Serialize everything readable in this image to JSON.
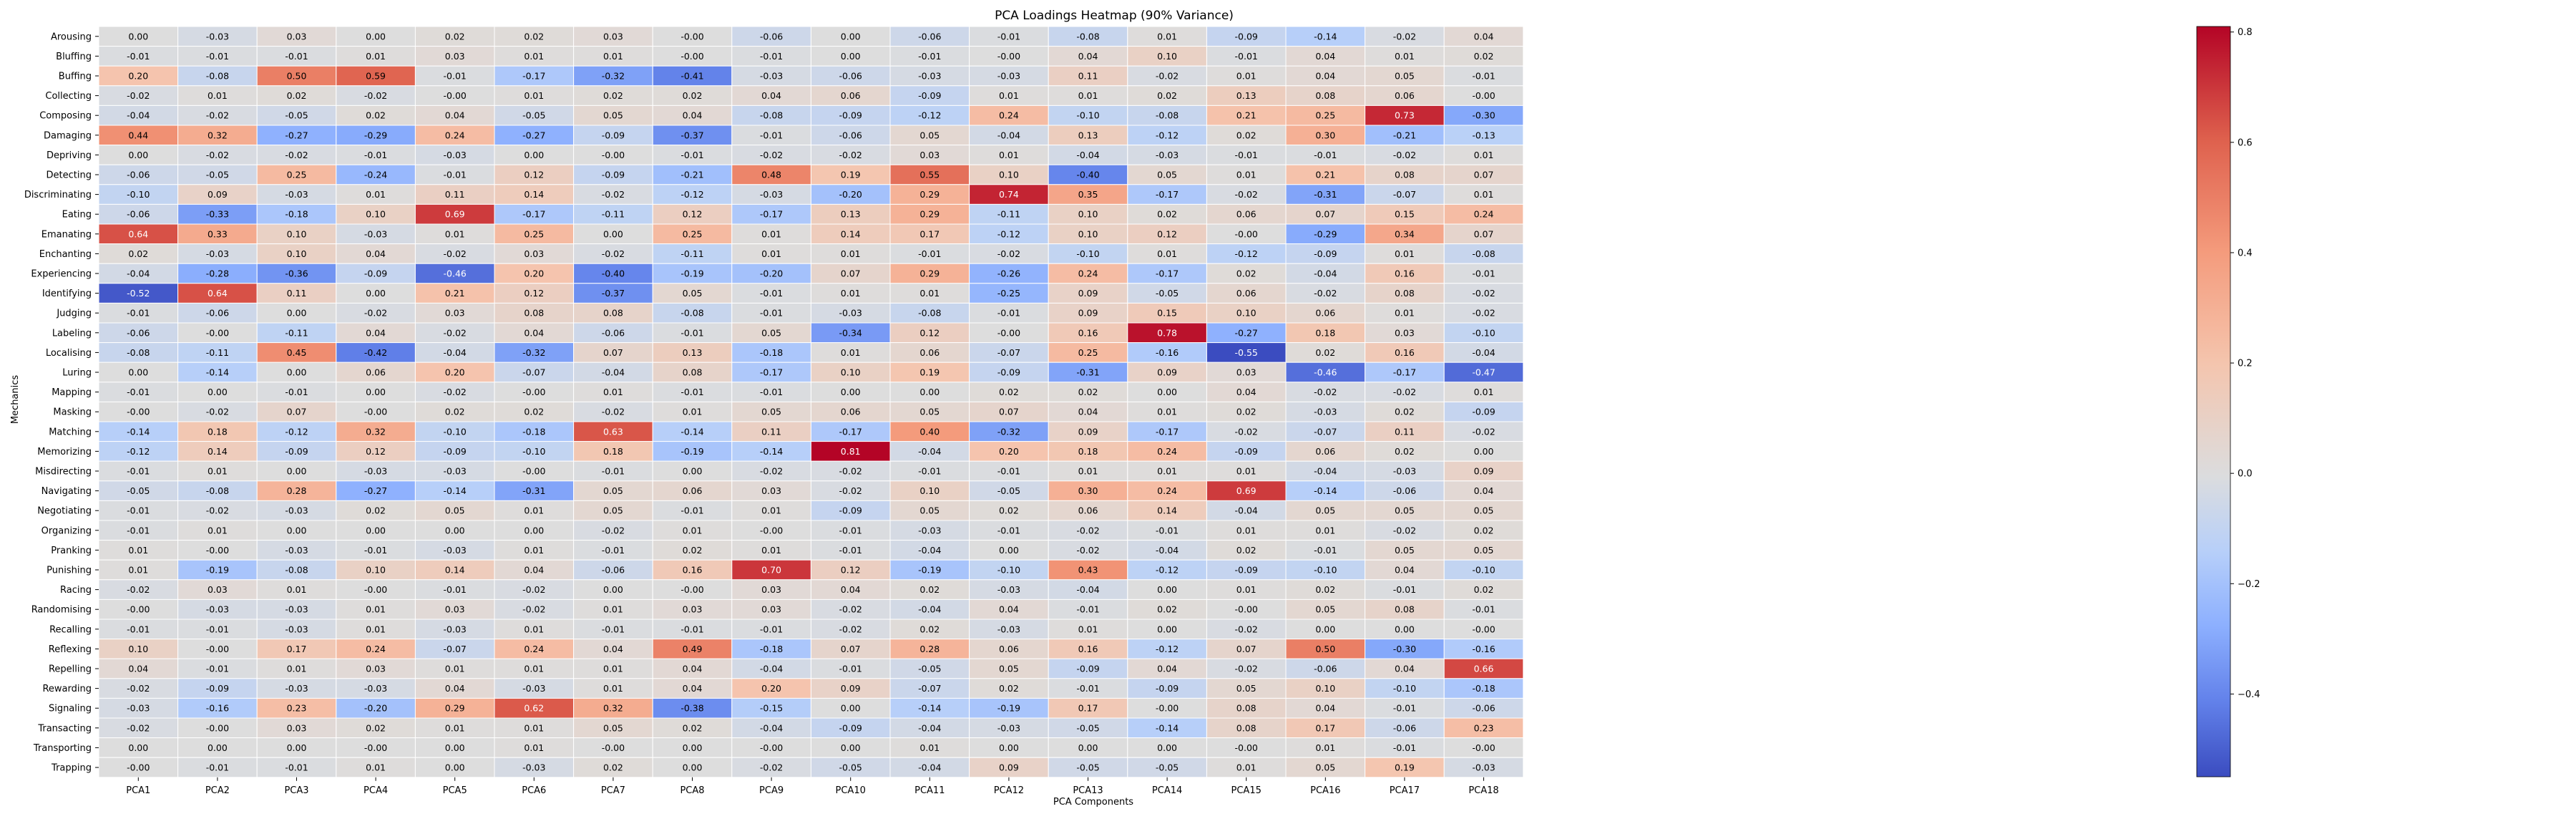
{
  "chart_data": {
    "type": "heatmap",
    "title": "PCA Loadings Heatmap (90% Variance)",
    "xlabel": "PCA Components",
    "ylabel": "Mechanics",
    "columns": [
      "PCA1",
      "PCA2",
      "PCA3",
      "PCA4",
      "PCA5",
      "PCA6",
      "PCA7",
      "PCA8",
      "PCA9",
      "PCA10",
      "PCA11",
      "PCA12",
      "PCA13",
      "PCA14",
      "PCA15",
      "PCA16",
      "PCA17",
      "PCA18"
    ],
    "rows": [
      "Arousing",
      "Bluffing",
      "Buffing",
      "Collecting",
      "Composing",
      "Damaging",
      "Depriving",
      "Detecting",
      "Discriminating",
      "Eating",
      "Emanating",
      "Enchanting",
      "Experiencing",
      "Identifying",
      "Judging",
      "Labeling",
      "Localising",
      "Luring",
      "Mapping",
      "Masking",
      "Matching",
      "Memorizing",
      "Misdirecting",
      "Navigating",
      "Negotiating",
      "Organizing",
      "Pranking",
      "Punishing",
      "Racing",
      "Randomising",
      "Recalling",
      "Reflexing",
      "Repelling",
      "Rewarding",
      "Signaling",
      "Transacting",
      "Transporting",
      "Trapping"
    ],
    "cell_labels": [
      [
        "0.00",
        "-0.03",
        "0.03",
        "0.00",
        "0.02",
        "0.02",
        "0.03",
        "-0.00",
        "-0.06",
        "0.00",
        "-0.06",
        "-0.01",
        "-0.08",
        "0.01",
        "-0.09",
        "-0.14",
        "-0.02",
        "0.04"
      ],
      [
        "-0.01",
        "-0.01",
        "-0.01",
        "0.01",
        "0.03",
        "0.01",
        "0.01",
        "-0.00",
        "-0.01",
        "0.00",
        "-0.01",
        "-0.00",
        "0.04",
        "0.10",
        "-0.01",
        "0.04",
        "0.01",
        "0.02"
      ],
      [
        "0.20",
        "-0.08",
        "0.50",
        "0.59",
        "-0.01",
        "-0.17",
        "-0.32",
        "-0.41",
        "-0.03",
        "-0.06",
        "-0.03",
        "-0.03",
        "0.11",
        "-0.02",
        "0.01",
        "0.04",
        "0.05",
        "-0.01"
      ],
      [
        "-0.02",
        "0.01",
        "0.02",
        "-0.02",
        "-0.00",
        "0.01",
        "0.02",
        "0.02",
        "0.04",
        "0.06",
        "-0.09",
        "0.01",
        "0.01",
        "0.02",
        "0.13",
        "0.08",
        "0.06",
        "-0.00"
      ],
      [
        "-0.04",
        "-0.02",
        "-0.05",
        "0.02",
        "0.04",
        "-0.05",
        "0.05",
        "0.04",
        "-0.08",
        "-0.09",
        "-0.12",
        "0.24",
        "-0.10",
        "-0.08",
        "0.21",
        "0.25",
        "0.73",
        "-0.30"
      ],
      [
        "0.44",
        "0.32",
        "-0.27",
        "-0.29",
        "0.24",
        "-0.27",
        "-0.09",
        "-0.37",
        "-0.01",
        "-0.06",
        "0.05",
        "-0.04",
        "0.13",
        "-0.12",
        "0.02",
        "0.30",
        "-0.21",
        "-0.13"
      ],
      [
        "0.00",
        "-0.02",
        "-0.02",
        "-0.01",
        "-0.03",
        "0.00",
        "-0.00",
        "-0.01",
        "-0.02",
        "-0.02",
        "0.03",
        "0.01",
        "-0.04",
        "-0.03",
        "-0.01",
        "-0.01",
        "-0.02",
        "0.01"
      ],
      [
        "-0.06",
        "-0.05",
        "0.25",
        "-0.24",
        "-0.01",
        "0.12",
        "-0.09",
        "-0.21",
        "0.48",
        "0.19",
        "0.55",
        "0.10",
        "-0.40",
        "0.05",
        "0.01",
        "0.21",
        "0.08",
        "0.07"
      ],
      [
        "-0.10",
        "0.09",
        "-0.03",
        "0.01",
        "0.11",
        "0.14",
        "-0.02",
        "-0.12",
        "-0.03",
        "-0.20",
        "0.29",
        "0.74",
        "0.35",
        "-0.17",
        "-0.02",
        "-0.31",
        "-0.07",
        "0.01"
      ],
      [
        "-0.06",
        "-0.33",
        "-0.18",
        "0.10",
        "0.69",
        "-0.17",
        "-0.11",
        "0.12",
        "-0.17",
        "0.13",
        "0.29",
        "-0.11",
        "0.10",
        "0.02",
        "0.06",
        "0.07",
        "0.15",
        "0.24"
      ],
      [
        "0.64",
        "0.33",
        "0.10",
        "-0.03",
        "0.01",
        "0.25",
        "0.00",
        "0.25",
        "0.01",
        "0.14",
        "0.17",
        "-0.12",
        "0.10",
        "0.12",
        "-0.00",
        "-0.29",
        "0.34",
        "0.07"
      ],
      [
        "0.02",
        "-0.03",
        "0.10",
        "0.04",
        "-0.02",
        "0.03",
        "-0.02",
        "-0.11",
        "0.01",
        "0.01",
        "-0.01",
        "-0.02",
        "-0.10",
        "0.01",
        "-0.12",
        "-0.09",
        "0.01",
        "-0.08"
      ],
      [
        "-0.04",
        "-0.28",
        "-0.36",
        "-0.09",
        "-0.46",
        "0.20",
        "-0.40",
        "-0.19",
        "-0.20",
        "0.07",
        "0.29",
        "-0.26",
        "0.24",
        "-0.17",
        "0.02",
        "-0.04",
        "0.16",
        "-0.01"
      ],
      [
        "-0.52",
        "0.64",
        "0.11",
        "0.00",
        "0.21",
        "0.12",
        "-0.37",
        "0.05",
        "-0.01",
        "0.01",
        "0.01",
        "-0.25",
        "0.09",
        "-0.05",
        "0.06",
        "-0.02",
        "0.08",
        "-0.02"
      ],
      [
        "-0.01",
        "-0.06",
        "0.00",
        "-0.02",
        "0.03",
        "0.08",
        "0.08",
        "-0.08",
        "-0.01",
        "-0.03",
        "-0.08",
        "-0.01",
        "0.09",
        "0.15",
        "0.10",
        "0.06",
        "0.01",
        "-0.02"
      ],
      [
        "-0.06",
        "-0.00",
        "-0.11",
        "0.04",
        "-0.02",
        "0.04",
        "-0.06",
        "-0.01",
        "0.05",
        "-0.34",
        "0.12",
        "-0.00",
        "0.16",
        "0.78",
        "-0.27",
        "0.18",
        "0.03",
        "-0.10"
      ],
      [
        "-0.08",
        "-0.11",
        "0.45",
        "-0.42",
        "-0.04",
        "-0.32",
        "0.07",
        "0.13",
        "-0.18",
        "0.01",
        "0.06",
        "-0.07",
        "0.25",
        "-0.16",
        "-0.55",
        "0.02",
        "0.16",
        "-0.04"
      ],
      [
        "0.00",
        "-0.14",
        "0.00",
        "0.06",
        "0.20",
        "-0.07",
        "-0.04",
        "0.08",
        "-0.17",
        "0.10",
        "0.19",
        "-0.09",
        "-0.31",
        "0.09",
        "0.03",
        "-0.46",
        "-0.17",
        "-0.47"
      ],
      [
        "-0.01",
        "0.00",
        "-0.01",
        "0.00",
        "-0.02",
        "-0.00",
        "0.01",
        "-0.01",
        "-0.01",
        "0.00",
        "0.00",
        "0.02",
        "0.02",
        "0.00",
        "0.04",
        "-0.02",
        "-0.02",
        "0.01"
      ],
      [
        "-0.00",
        "-0.02",
        "0.07",
        "-0.00",
        "0.02",
        "0.02",
        "-0.02",
        "0.01",
        "0.05",
        "0.06",
        "0.05",
        "0.07",
        "0.04",
        "0.01",
        "0.02",
        "-0.03",
        "0.02",
        "-0.09"
      ],
      [
        "-0.14",
        "0.18",
        "-0.12",
        "0.32",
        "-0.10",
        "-0.18",
        "0.63",
        "-0.14",
        "0.11",
        "-0.17",
        "0.40",
        "-0.32",
        "0.09",
        "-0.17",
        "-0.02",
        "-0.07",
        "0.11",
        "-0.02"
      ],
      [
        "-0.12",
        "0.14",
        "-0.09",
        "0.12",
        "-0.09",
        "-0.10",
        "0.18",
        "-0.19",
        "-0.14",
        "0.81",
        "-0.04",
        "0.20",
        "0.18",
        "0.24",
        "-0.09",
        "0.06",
        "0.02",
        "0.00"
      ],
      [
        "-0.01",
        "0.01",
        "0.00",
        "-0.03",
        "-0.03",
        "-0.00",
        "-0.01",
        "0.00",
        "-0.02",
        "-0.02",
        "-0.01",
        "-0.01",
        "0.01",
        "0.01",
        "0.01",
        "-0.04",
        "-0.03",
        "0.09"
      ],
      [
        "-0.05",
        "-0.08",
        "0.28",
        "-0.27",
        "-0.14",
        "-0.31",
        "0.05",
        "0.06",
        "0.03",
        "-0.02",
        "0.10",
        "-0.05",
        "0.30",
        "0.24",
        "0.69",
        "-0.14",
        "-0.06",
        "0.04"
      ],
      [
        "-0.01",
        "-0.02",
        "-0.03",
        "0.02",
        "0.05",
        "0.01",
        "0.05",
        "-0.01",
        "0.01",
        "-0.09",
        "0.05",
        "0.02",
        "0.06",
        "0.14",
        "-0.04",
        "0.05",
        "0.05",
        "0.05"
      ],
      [
        "-0.01",
        "0.01",
        "0.00",
        "0.00",
        "0.00",
        "0.00",
        "-0.02",
        "0.01",
        "-0.00",
        "-0.01",
        "-0.03",
        "-0.01",
        "-0.02",
        "-0.01",
        "0.01",
        "0.01",
        "-0.02",
        "0.02"
      ],
      [
        "0.01",
        "-0.00",
        "-0.03",
        "-0.01",
        "-0.03",
        "0.01",
        "-0.01",
        "0.02",
        "0.01",
        "-0.01",
        "-0.04",
        "0.00",
        "-0.02",
        "-0.04",
        "0.02",
        "-0.01",
        "0.05",
        "0.05"
      ],
      [
        "0.01",
        "-0.19",
        "-0.08",
        "0.10",
        "0.14",
        "0.04",
        "-0.06",
        "0.16",
        "0.70",
        "0.12",
        "-0.19",
        "-0.10",
        "0.43",
        "-0.12",
        "-0.09",
        "-0.10",
        "0.04",
        "-0.10"
      ],
      [
        "-0.02",
        "0.03",
        "0.01",
        "-0.00",
        "-0.01",
        "-0.02",
        "0.00",
        "-0.00",
        "0.03",
        "0.04",
        "0.02",
        "-0.03",
        "-0.04",
        "0.00",
        "0.01",
        "0.02",
        "-0.01",
        "0.02"
      ],
      [
        "-0.00",
        "-0.03",
        "-0.03",
        "0.01",
        "0.03",
        "-0.02",
        "0.01",
        "0.03",
        "0.03",
        "-0.02",
        "-0.04",
        "0.04",
        "-0.01",
        "0.02",
        "-0.00",
        "0.05",
        "0.08",
        "-0.01"
      ],
      [
        "-0.01",
        "-0.01",
        "-0.03",
        "0.01",
        "-0.03",
        "0.01",
        "-0.01",
        "-0.01",
        "-0.01",
        "-0.02",
        "0.02",
        "-0.03",
        "0.01",
        "0.00",
        "-0.02",
        "0.00",
        "0.00",
        "-0.00"
      ],
      [
        "0.10",
        "-0.00",
        "0.17",
        "0.24",
        "-0.07",
        "0.24",
        "0.04",
        "0.49",
        "-0.18",
        "0.07",
        "0.28",
        "0.06",
        "0.16",
        "-0.12",
        "0.07",
        "0.50",
        "-0.30",
        "-0.16"
      ],
      [
        "0.04",
        "-0.01",
        "0.01",
        "0.03",
        "0.01",
        "0.01",
        "0.01",
        "0.04",
        "-0.04",
        "-0.01",
        "-0.05",
        "0.05",
        "-0.09",
        "0.04",
        "-0.02",
        "-0.06",
        "0.04",
        "0.66"
      ],
      [
        "-0.02",
        "-0.09",
        "-0.03",
        "-0.03",
        "0.04",
        "-0.03",
        "0.01",
        "0.04",
        "0.20",
        "0.09",
        "-0.07",
        "0.02",
        "-0.01",
        "-0.09",
        "0.05",
        "0.10",
        "-0.10",
        "-0.18"
      ],
      [
        "-0.03",
        "-0.16",
        "0.23",
        "-0.20",
        "0.29",
        "0.62",
        "0.32",
        "-0.38",
        "-0.15",
        "0.00",
        "-0.14",
        "-0.19",
        "0.17",
        "-0.00",
        "0.08",
        "0.04",
        "-0.01",
        "-0.06"
      ],
      [
        "-0.02",
        "-0.00",
        "0.03",
        "0.02",
        "0.01",
        "0.01",
        "0.05",
        "0.02",
        "-0.04",
        "-0.09",
        "-0.04",
        "-0.03",
        "-0.05",
        "-0.14",
        "0.08",
        "0.17",
        "-0.06",
        "0.23"
      ],
      [
        "0.00",
        "0.00",
        "0.00",
        "-0.00",
        "0.00",
        "0.01",
        "-0.00",
        "0.00",
        "-0.00",
        "0.00",
        "0.01",
        "0.00",
        "0.00",
        "0.00",
        "-0.00",
        "0.01",
        "-0.01",
        "-0.00"
      ],
      [
        "-0.00",
        "-0.01",
        "-0.01",
        "0.01",
        "0.00",
        "-0.03",
        "0.02",
        "0.00",
        "-0.02",
        "-0.05",
        "-0.04",
        "0.09",
        "-0.05",
        "-0.05",
        "0.01",
        "0.05",
        "0.19",
        "-0.03"
      ]
    ],
    "colorbar": {
      "vmin": -0.55,
      "vmax": 0.81,
      "ticks": [
        -0.4,
        -0.2,
        0.0,
        0.2,
        0.4,
        0.6,
        0.8
      ],
      "tick_labels": [
        "−0.4",
        "−0.2",
        "0.0",
        "0.2",
        "0.4",
        "0.6",
        "0.8"
      ]
    },
    "colormap": "coolwarm",
    "colors": {
      "low": "#3b4cc0",
      "mid": "#dddddd",
      "high": "#b40426"
    }
  }
}
